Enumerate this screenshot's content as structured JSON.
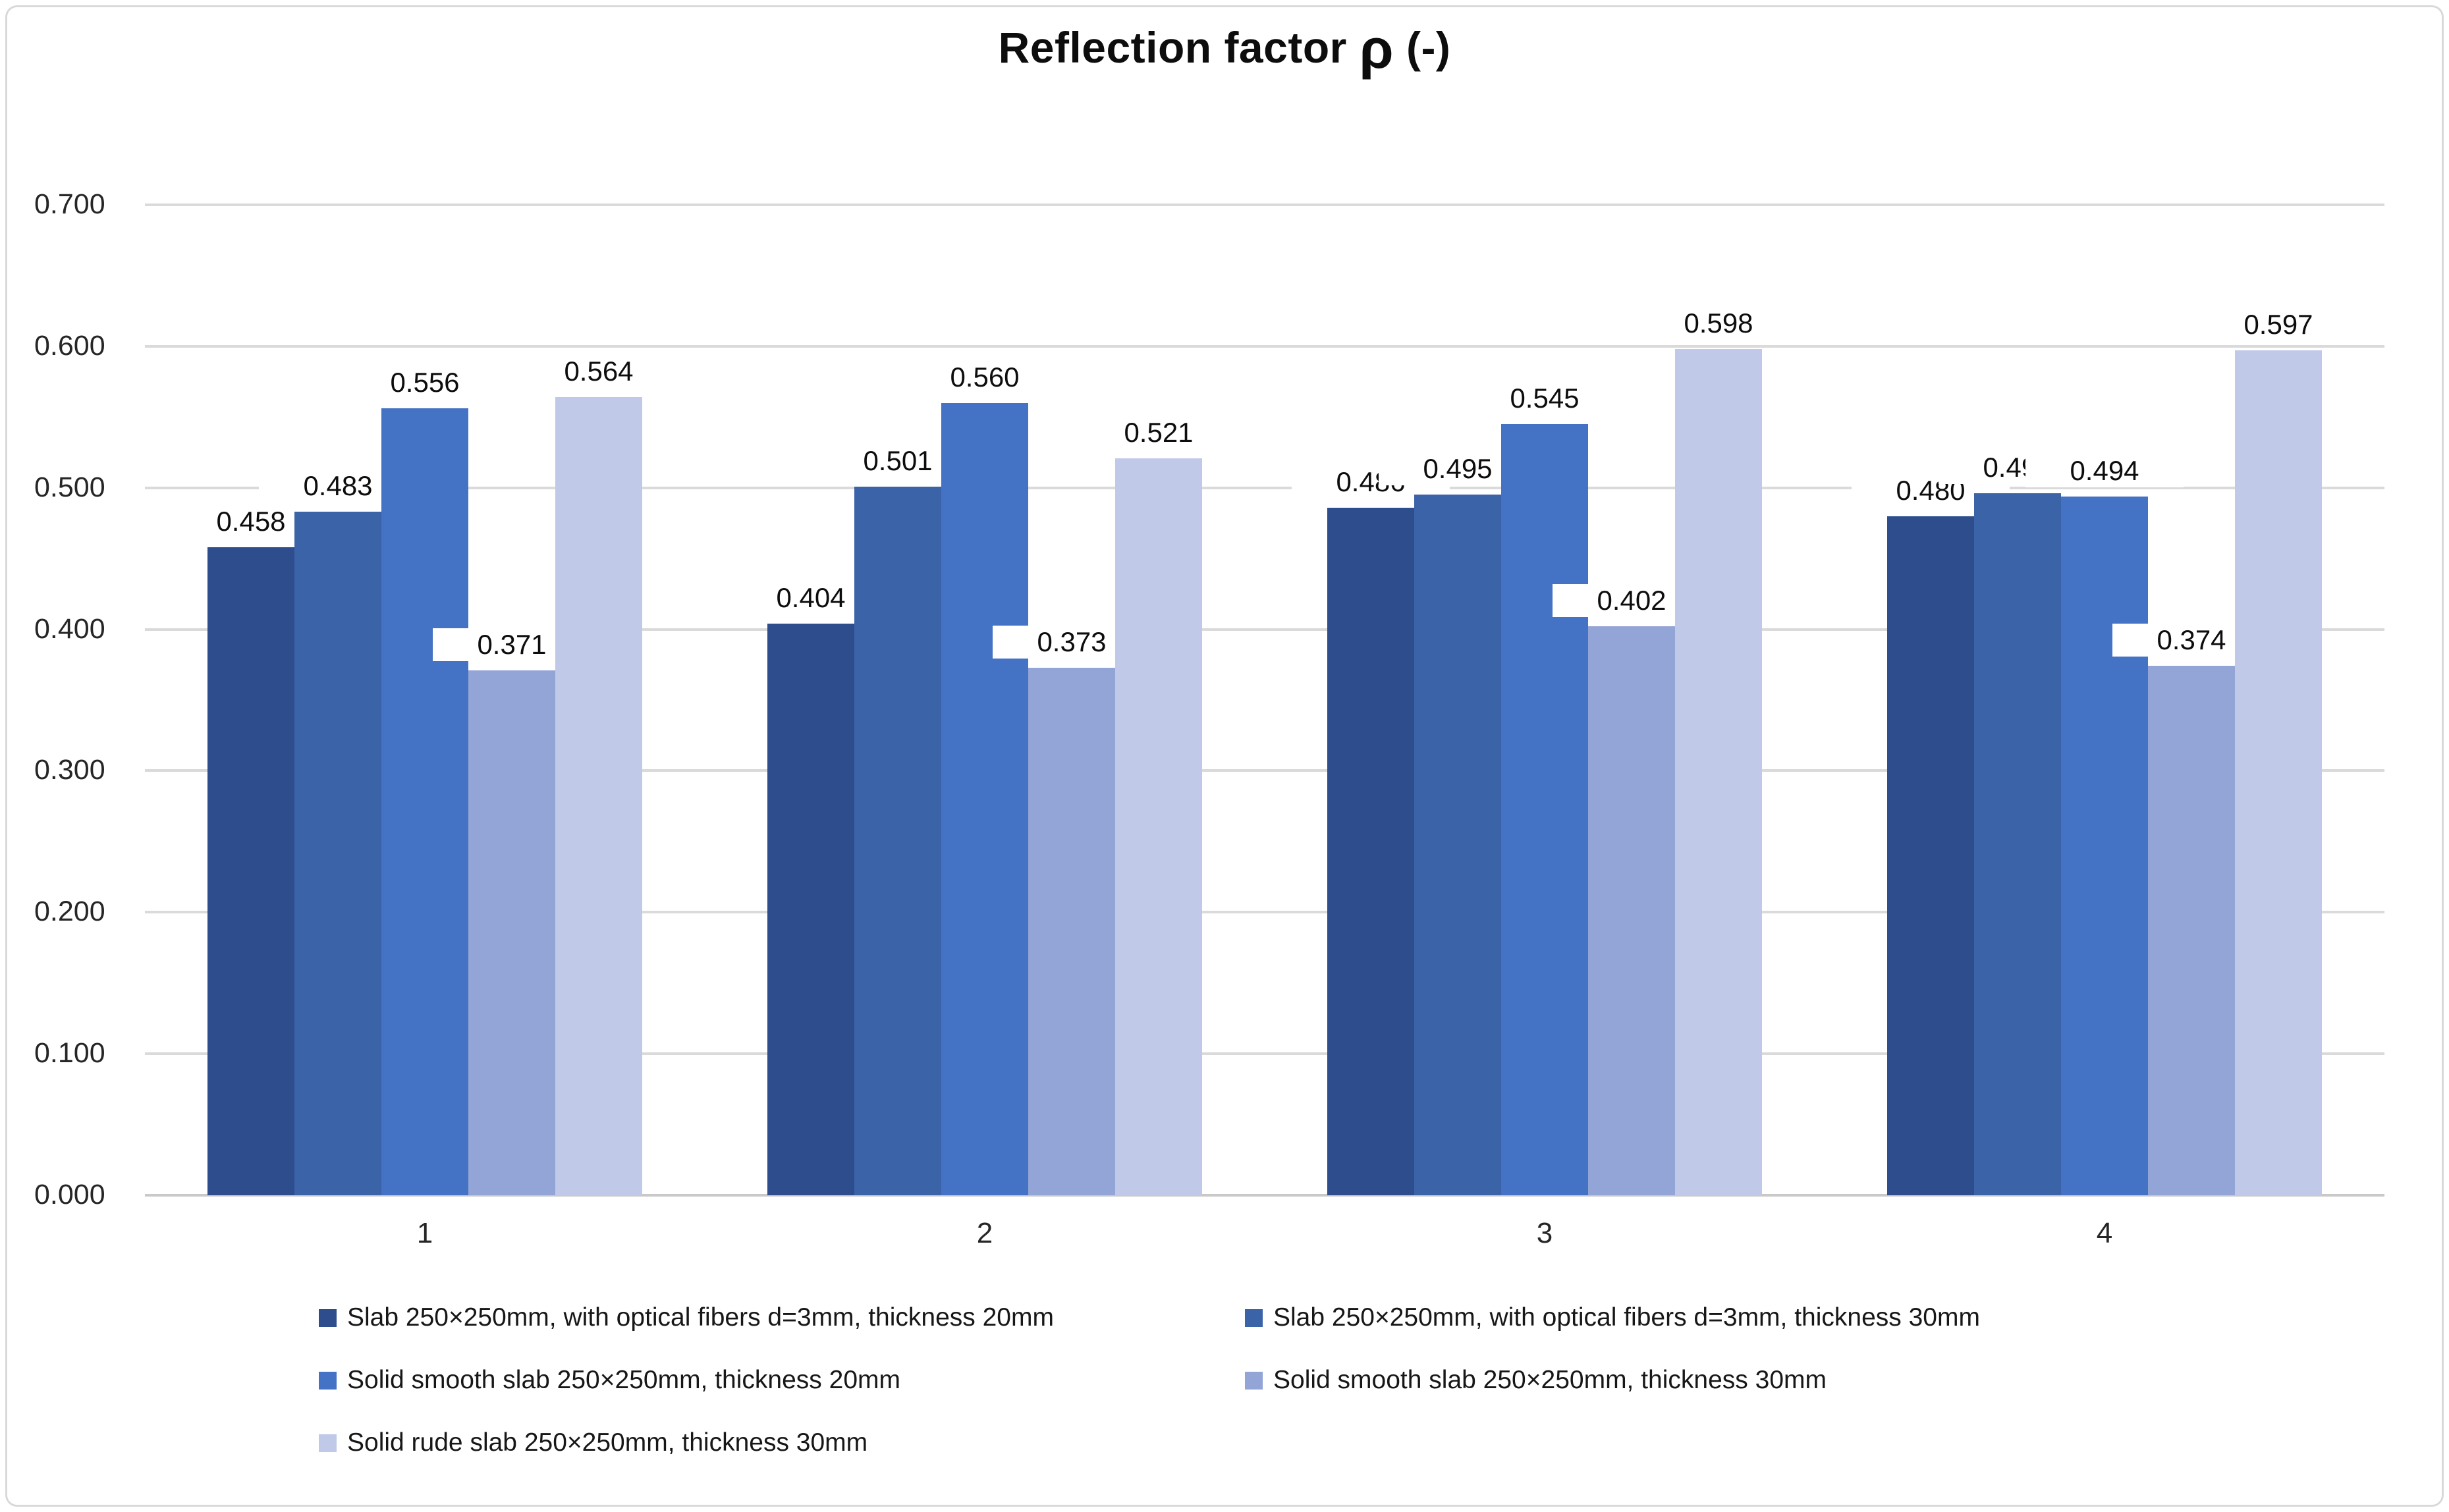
{
  "chart_data": {
    "type": "bar",
    "title": "Reflection factor ρ (-)",
    "title_parts": {
      "prefix": "Reflection factor ",
      "rho": "ρ",
      "suffix": " (-)"
    },
    "categories": [
      "1",
      "2",
      "3",
      "4"
    ],
    "series": [
      {
        "name": "Slab 250×250mm, with optical fibers d=3mm, thickness 20mm",
        "color": "#2E4D8C",
        "values": [
          0.458,
          0.404,
          0.486,
          0.48
        ]
      },
      {
        "name": "Slab 250×250mm, with optical fibers d=3mm, thickness 30mm",
        "color": "#3B63A8",
        "values": [
          0.483,
          0.501,
          0.495,
          0.496
        ]
      },
      {
        "name": "Solid smooth slab 250×250mm, thickness 20mm",
        "color": "#4472C4",
        "values": [
          0.556,
          0.56,
          0.545,
          0.494
        ]
      },
      {
        "name": "Solid smooth slab 250×250mm, thickness 30mm",
        "color": "#93A4D6",
        "values": [
          0.371,
          0.373,
          0.402,
          0.374
        ]
      },
      {
        "name": "Solid rude slab 250×250mm, thickness 30mm",
        "color": "#C0C9E8",
        "values": [
          0.564,
          0.521,
          0.598,
          0.597
        ]
      }
    ],
    "ylim": [
      0.0,
      0.7
    ],
    "ytick_step": 0.1,
    "ytick_labels": [
      "0.000",
      "0.100",
      "0.200",
      "0.300",
      "0.400",
      "0.500",
      "0.600",
      "0.700"
    ],
    "value_label_decimals": 3,
    "data_labels": true,
    "grid": "horizontal",
    "legend_position": "bottom",
    "legend_layout": [
      {
        "series_index": 0,
        "column": 0,
        "row": 0
      },
      {
        "series_index": 1,
        "column": 1,
        "row": 0
      },
      {
        "series_index": 2,
        "column": 0,
        "row": 1
      },
      {
        "series_index": 3,
        "column": 1,
        "row": 1
      },
      {
        "series_index": 4,
        "column": 0,
        "row": 2
      }
    ]
  },
  "colors": {
    "gridline": "#DADADA",
    "axis_line": "#C9C9C9",
    "tick_text": "#262626",
    "title_text": "#0d0d0d"
  }
}
